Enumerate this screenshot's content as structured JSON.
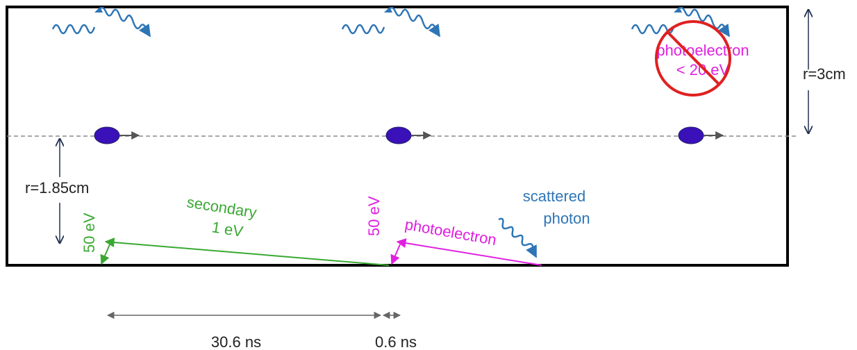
{
  "labels": {
    "r_outer": "r=3cm",
    "r_inner": "r=1.85cm",
    "photoelectron_top_1": "photoelectron",
    "photoelectron_top_2": "< 20 eV",
    "secondary_1": "secondary",
    "secondary_2": "1 eV",
    "energy_left": "50 eV",
    "energy_mid": "50 eV",
    "photoelectron_bottom": "photoelectron",
    "scattered_1": "scattered",
    "scattered_2": "photon",
    "time_1": "30.6 ns",
    "time_2": "0.6 ns"
  },
  "colors": {
    "photon": "#2e75b6",
    "photoelectron": "#e020e0",
    "secondary": "#3aa832",
    "bunch": "#3a10b8",
    "axis": "#888888",
    "forbidden": "#e02020",
    "outline": "#000000",
    "dimension": "#666666",
    "radius_arrow": "#203050"
  }
}
